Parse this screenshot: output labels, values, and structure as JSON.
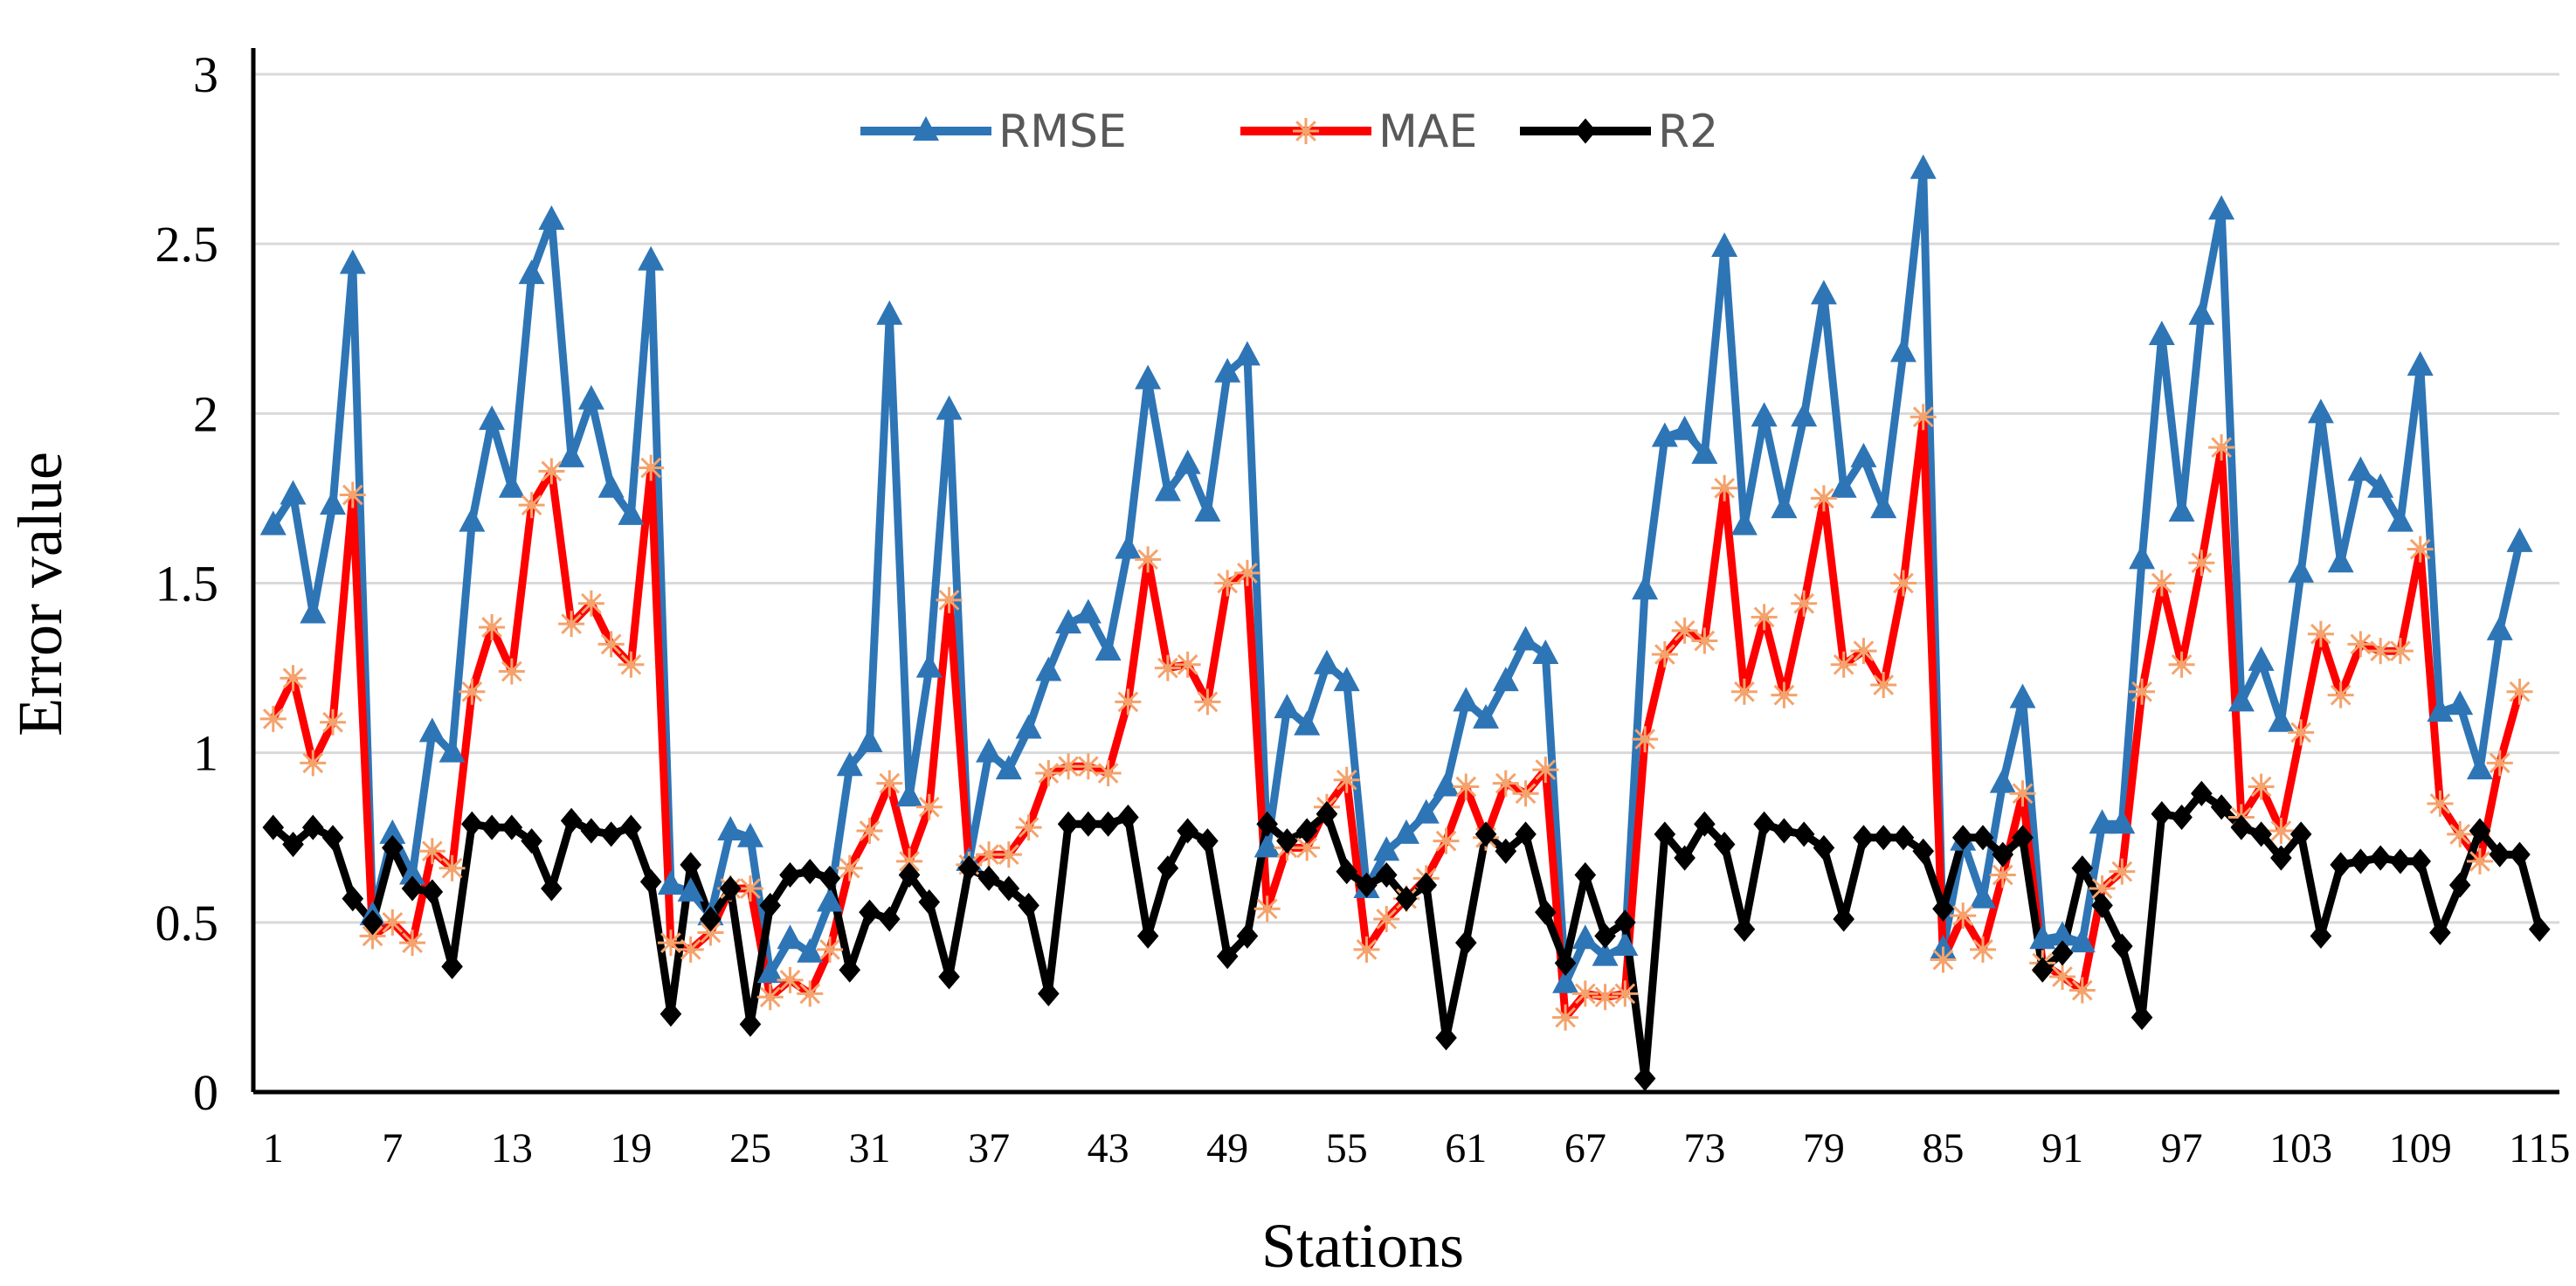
{
  "chart_data": {
    "type": "line",
    "title": "",
    "xlabel": "Stations",
    "ylabel": "Error value",
    "ylim": [
      0,
      3
    ],
    "yticks": [
      "0",
      "0.5",
      "1",
      "1.5",
      "2",
      "2.5",
      "3"
    ],
    "xlim": [
      0,
      116
    ],
    "xticks": [
      "1",
      "7",
      "13",
      "19",
      "25",
      "31",
      "37",
      "43",
      "49",
      "55",
      "61",
      "67",
      "73",
      "79",
      "85",
      "91",
      "97",
      "103",
      "109",
      "115"
    ],
    "grid": true,
    "legend_position": "top-center",
    "series": [
      {
        "name": "RMSE",
        "color": "#2E75B6",
        "marker": "triangle",
        "values": [
          1.67,
          1.76,
          1.41,
          1.73,
          2.44,
          0.52,
          0.76,
          0.64,
          1.06,
          1.0,
          1.68,
          1.98,
          1.78,
          2.41,
          2.57,
          1.87,
          2.04,
          1.78,
          1.7,
          2.45,
          0.61,
          0.59,
          0.52,
          0.77,
          0.75,
          0.35,
          0.45,
          0.41,
          0.56,
          0.96,
          1.03,
          2.29,
          0.87,
          1.25,
          2.01,
          0.68,
          1.0,
          0.95,
          1.07,
          1.24,
          1.38,
          1.41,
          1.3,
          1.6,
          2.1,
          1.77,
          1.85,
          1.71,
          2.12,
          2.17,
          0.72,
          1.13,
          1.08,
          1.26,
          1.21,
          0.6,
          0.71,
          0.76,
          0.82,
          0.9,
          1.15,
          1.1,
          1.21,
          1.33,
          1.29,
          0.32,
          0.45,
          0.4,
          0.43,
          1.48,
          1.93,
          1.95,
          1.88,
          2.49,
          1.67,
          1.99,
          1.72,
          1.99,
          2.35,
          1.78,
          1.87,
          1.72,
          2.18,
          2.72,
          0.42,
          0.74,
          0.57,
          0.91,
          1.16,
          0.45,
          0.46,
          0.44,
          0.79,
          0.79,
          1.57,
          2.23,
          1.71,
          2.29,
          2.6,
          1.15,
          1.27,
          1.09,
          1.53,
          2.0,
          1.56,
          1.83,
          1.78,
          1.68,
          2.14,
          1.12,
          1.14,
          0.95,
          1.36,
          1.62
        ]
      },
      {
        "name": "MAE",
        "color": "#FF0000",
        "marker": "star",
        "values": [
          1.1,
          1.22,
          0.97,
          1.09,
          1.76,
          0.46,
          0.5,
          0.44,
          0.71,
          0.66,
          1.18,
          1.37,
          1.24,
          1.73,
          1.83,
          1.38,
          1.44,
          1.32,
          1.26,
          1.84,
          0.44,
          0.42,
          0.47,
          0.6,
          0.6,
          0.28,
          0.33,
          0.29,
          0.42,
          0.66,
          0.77,
          0.91,
          0.68,
          0.84,
          1.45,
          0.67,
          0.7,
          0.7,
          0.78,
          0.94,
          0.96,
          0.96,
          0.94,
          1.15,
          1.57,
          1.25,
          1.26,
          1.15,
          1.5,
          1.53,
          0.54,
          0.72,
          0.72,
          0.84,
          0.92,
          0.42,
          0.51,
          0.57,
          0.63,
          0.74,
          0.9,
          0.75,
          0.91,
          0.88,
          0.95,
          0.22,
          0.29,
          0.28,
          0.29,
          1.04,
          1.29,
          1.36,
          1.33,
          1.78,
          1.18,
          1.4,
          1.17,
          1.44,
          1.75,
          1.26,
          1.3,
          1.2,
          1.5,
          1.99,
          0.39,
          0.52,
          0.42,
          0.64,
          0.88,
          0.38,
          0.34,
          0.3,
          0.6,
          0.65,
          1.18,
          1.5,
          1.26,
          1.56,
          1.9,
          0.81,
          0.9,
          0.77,
          1.06,
          1.35,
          1.17,
          1.32,
          1.3,
          1.3,
          1.6,
          0.85,
          0.76,
          0.68,
          0.97,
          1.18
        ]
      },
      {
        "name": "R2",
        "color": "#000000",
        "marker": "diamond",
        "values": [
          0.78,
          0.73,
          0.78,
          0.75,
          0.57,
          0.5,
          0.72,
          0.6,
          0.59,
          0.37,
          0.79,
          0.78,
          0.78,
          0.74,
          0.6,
          0.8,
          0.77,
          0.76,
          0.78,
          0.62,
          0.23,
          0.67,
          0.51,
          0.6,
          0.2,
          0.55,
          0.64,
          0.65,
          0.63,
          0.36,
          0.53,
          0.51,
          0.64,
          0.56,
          0.34,
          0.66,
          0.63,
          0.6,
          0.55,
          0.29,
          0.79,
          0.79,
          0.79,
          0.81,
          0.46,
          0.66,
          0.77,
          0.74,
          0.4,
          0.46,
          0.79,
          0.74,
          0.77,
          0.82,
          0.65,
          0.61,
          0.64,
          0.57,
          0.61,
          0.16,
          0.44,
          0.76,
          0.71,
          0.76,
          0.53,
          0.38,
          0.64,
          0.46,
          0.5,
          0.04,
          0.76,
          0.69,
          0.79,
          0.73,
          0.48,
          0.79,
          0.77,
          0.76,
          0.72,
          0.51,
          0.75,
          0.75,
          0.75,
          0.71,
          0.54,
          0.75,
          0.75,
          0.7,
          0.75,
          0.36,
          0.41,
          0.66,
          0.55,
          0.43,
          0.22,
          0.82,
          0.81,
          0.88,
          0.84,
          0.78,
          0.76,
          0.69,
          0.76,
          0.46,
          0.67,
          0.68,
          0.69,
          0.68,
          0.68,
          0.47,
          0.61,
          0.77,
          0.7,
          0.7,
          0.48
        ]
      }
    ]
  }
}
